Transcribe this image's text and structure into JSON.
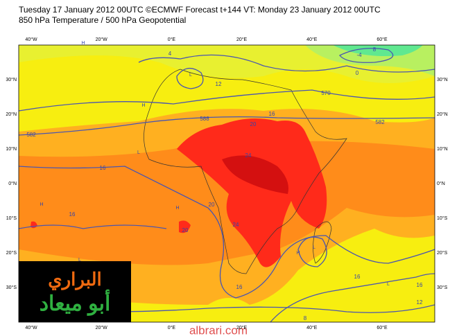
{
  "header": {
    "title": "Tuesday 17 January 2012 00UTC ©ECMWF Forecast t+144 VT: Monday 23 January 2012 00UTC",
    "subtitle": "850 hPa Temperature / 500 hPa Geopotential"
  },
  "map": {
    "longitudes": [
      "40°W",
      "20°W",
      "0°E",
      "20°E",
      "40°E",
      "60°E"
    ],
    "latitudes": [
      "30°N",
      "20°N",
      "10°N",
      "0°N",
      "10°S",
      "20°S",
      "30°S"
    ],
    "contour_labels": [
      "582",
      "588",
      "582",
      "570",
      "12",
      "4",
      "0",
      "-4",
      "8",
      "16",
      "20",
      "24",
      "16",
      "16",
      "20",
      "20",
      "24",
      "16",
      "16",
      "16",
      "12",
      "8"
    ],
    "pressure_centers": [
      "L",
      "H",
      "L",
      "L",
      "H",
      "H",
      "H",
      "L",
      "H",
      "L"
    ]
  },
  "logo": {
    "line1": "البراري",
    "line2": "أبو ميعاد"
  },
  "watermark": "albrari.com"
}
